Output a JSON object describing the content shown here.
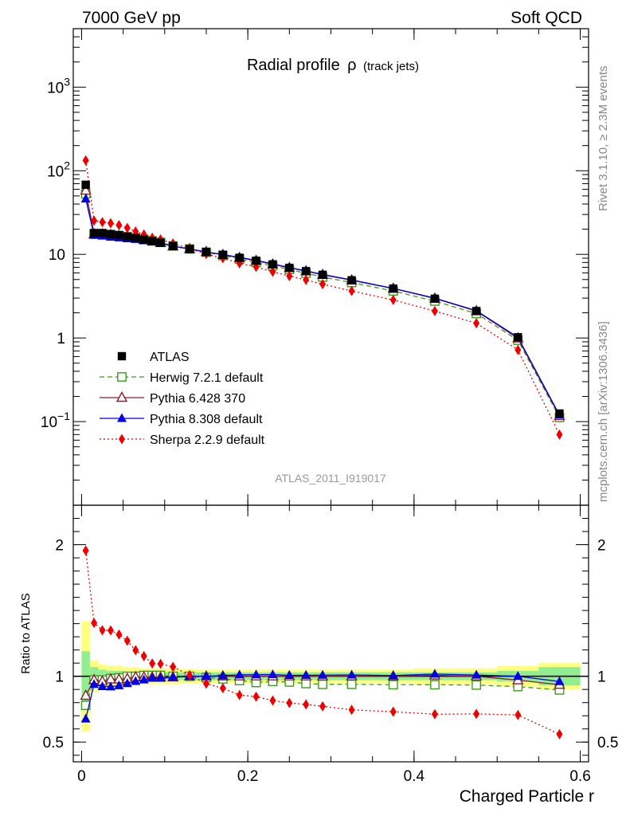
{
  "header": {
    "energy_label": "7000 GeV pp",
    "category_label": "Soft QCD"
  },
  "side_labels": {
    "rivet": "Rivet 3.1.10, ≥ 2.3M events",
    "source": "mcplots.cern.ch [arXiv:1306.3436]"
  },
  "chart_data": {
    "type": "line",
    "title_main": "Radial profile",
    "title_symbol": "ρ",
    "title_sub": "(track jets)",
    "analysis_id": "ATLAS_2011_I919017",
    "xlabel": "Charged Particle r",
    "ratio_ylabel": "Ratio to ATLAS",
    "xlim": [
      -0.01,
      0.61
    ],
    "ylim_log": [
      0.01,
      5000
    ],
    "ratio_ylim": [
      0.35,
      2.3
    ],
    "x_ticks": [
      {
        "v": 0,
        "label": "0"
      },
      {
        "v": 0.2,
        "label": "0.2"
      },
      {
        "v": 0.4,
        "label": "0.4"
      },
      {
        "v": 0.6,
        "label": "0.6"
      }
    ],
    "y_ticks": [
      {
        "label": "10",
        "sup": "−1",
        "exp": -1
      },
      {
        "label": "1",
        "sup": "",
        "exp": 0
      },
      {
        "label": "10",
        "sup": "",
        "exp": 1
      },
      {
        "label": "10",
        "sup": "2",
        "exp": 2
      },
      {
        "label": "10",
        "sup": "3",
        "exp": 3
      }
    ],
    "ratio_ticks": [
      {
        "v": 0.5,
        "label": "0.5"
      },
      {
        "v": 1,
        "label": "1"
      },
      {
        "v": 2,
        "label": "2"
      }
    ],
    "x": [
      0.005,
      0.015,
      0.025,
      0.035,
      0.045,
      0.055,
      0.065,
      0.075,
      0.085,
      0.095,
      0.11,
      0.13,
      0.15,
      0.17,
      0.19,
      0.21,
      0.23,
      0.25,
      0.27,
      0.29,
      0.325,
      0.375,
      0.425,
      0.475,
      0.525,
      0.575
    ],
    "bin_edges": [
      0,
      0.01,
      0.02,
      0.03,
      0.04,
      0.05,
      0.06,
      0.07,
      0.08,
      0.09,
      0.1,
      0.12,
      0.14,
      0.16,
      0.18,
      0.2,
      0.22,
      0.24,
      0.26,
      0.28,
      0.3,
      0.35,
      0.4,
      0.45,
      0.5,
      0.55,
      0.6
    ],
    "band_inner": [
      0.19,
      0.07,
      0.05,
      0.04,
      0.04,
      0.035,
      0.035,
      0.03,
      0.03,
      0.03,
      0.03,
      0.03,
      0.03,
      0.03,
      0.03,
      0.03,
      0.03,
      0.03,
      0.03,
      0.03,
      0.03,
      0.03,
      0.03,
      0.03,
      0.04,
      0.07
    ],
    "band_outer": [
      0.42,
      0.12,
      0.09,
      0.08,
      0.08,
      0.07,
      0.07,
      0.06,
      0.06,
      0.06,
      0.06,
      0.055,
      0.05,
      0.05,
      0.05,
      0.05,
      0.05,
      0.05,
      0.05,
      0.05,
      0.05,
      0.05,
      0.06,
      0.06,
      0.08,
      0.1
    ],
    "series": [
      {
        "name": "ATLAS",
        "color": "#000000",
        "marker": "square-filled",
        "dash": "",
        "values": [
          68,
          18,
          18,
          17.5,
          17,
          16.3,
          15.7,
          15,
          14.4,
          13.8,
          12.6,
          11.6,
          10.7,
          9.9,
          9.1,
          8.4,
          7.6,
          6.9,
          6.3,
          5.7,
          4.9,
          3.9,
          2.95,
          2.1,
          1.02,
          0.125
        ]
      },
      {
        "name": "Herwig 7.2.1 default",
        "color": "#3d9a1e",
        "marker": "square-open",
        "dash": "6,4",
        "values": [
          53,
          17.5,
          17.5,
          17.2,
          16.8,
          16.3,
          15.7,
          15.1,
          14.5,
          13.9,
          12.6,
          11.6,
          10.6,
          9.7,
          8.8,
          8.0,
          7.3,
          6.6,
          5.95,
          5.35,
          4.6,
          3.65,
          2.76,
          1.96,
          0.94,
          0.112
        ]
      },
      {
        "name": "Pythia 6.428 370",
        "color": "#8c1c2c",
        "marker": "triangle-open",
        "dash": "",
        "values": [
          58,
          17.5,
          17.3,
          17.1,
          16.6,
          16.0,
          15.6,
          14.9,
          14.3,
          13.7,
          12.5,
          11.6,
          10.7,
          9.9,
          9.1,
          8.4,
          7.6,
          6.9,
          6.3,
          5.7,
          4.9,
          3.9,
          2.97,
          2.1,
          0.99,
          0.117
        ]
      },
      {
        "name": "Pythia 8.308 default",
        "color": "#0000e0",
        "marker": "triangle-filled",
        "dash": "",
        "values": [
          46,
          16.9,
          16.6,
          16.1,
          15.8,
          15.4,
          15.1,
          14.6,
          14.2,
          13.6,
          12.5,
          11.6,
          10.7,
          9.95,
          9.2,
          8.5,
          7.7,
          6.95,
          6.35,
          5.75,
          4.95,
          3.92,
          3.0,
          2.12,
          1.02,
          0.12
        ]
      },
      {
        "name": "Sherpa 2.2.9 default",
        "color": "#ee0000",
        "marker": "diamond-filled",
        "dash": "2,3",
        "values": [
          133,
          25.3,
          24.3,
          23.6,
          22.4,
          20.7,
          18.8,
          17.3,
          15.8,
          15.1,
          13.5,
          11.7,
          10.1,
          9.0,
          7.8,
          7.1,
          6.2,
          5.5,
          4.95,
          4.4,
          3.65,
          2.85,
          2.1,
          1.5,
          0.72,
          0.07
        ]
      }
    ]
  }
}
